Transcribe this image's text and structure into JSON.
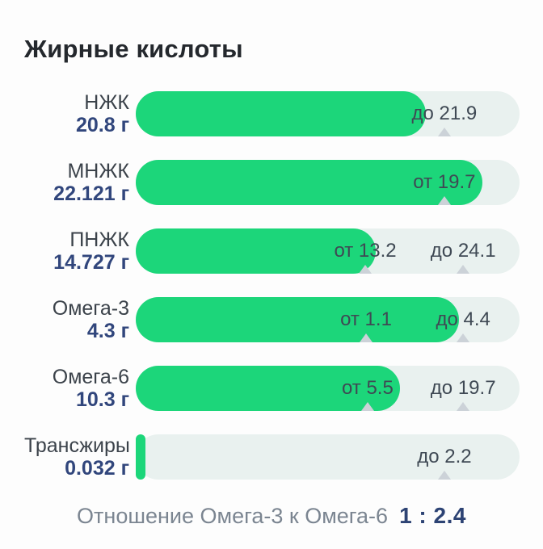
{
  "page": {
    "title": "Жирные кислоты"
  },
  "colors": {
    "bar_fill": "#1cd67a",
    "bar_track": "#e9f1ef",
    "value_text": "#31467c",
    "title_text": "#24282d",
    "threshold_marker": "#ccd2d8",
    "footer_label": "#7b8591",
    "footer_value": "#2d4374"
  },
  "chart_data": {
    "type": "bar",
    "orientation": "horizontal",
    "title": "Жирные кислоты",
    "unit": "г",
    "legend_position": "none",
    "grid": false,
    "rows": [
      {
        "name": "НЖК",
        "value": 20.8,
        "value_label": "20.8 г",
        "fill_percent": 75.6,
        "thresholds": [
          {
            "label": "до 21.9",
            "limit": 21.9,
            "kind": "max",
            "percent": 80.4
          }
        ]
      },
      {
        "name": "МНЖК",
        "value": 22.121,
        "value_label": "22.121 г",
        "fill_percent": 90.3,
        "thresholds": [
          {
            "label": "от 19.7",
            "limit": 19.7,
            "kind": "min",
            "percent": 80.4
          }
        ]
      },
      {
        "name": "ПНЖК",
        "value": 14.727,
        "value_label": "14.727 г",
        "fill_percent": 62.5,
        "thresholds": [
          {
            "label": "от 13.2",
            "limit": 13.2,
            "kind": "min",
            "percent": 59.8
          },
          {
            "label": "до 24.1",
            "limit": 24.1,
            "kind": "max",
            "percent": 85.3
          }
        ]
      },
      {
        "name": "Омега-3",
        "value": 4.3,
        "value_label": "4.3 г",
        "fill_percent": 84.2,
        "thresholds": [
          {
            "label": "от 1.1",
            "limit": 1.1,
            "kind": "min",
            "percent": 60.0
          },
          {
            "label": "до 4.4",
            "limit": 4.4,
            "kind": "max",
            "percent": 85.3
          }
        ]
      },
      {
        "name": "Омега-6",
        "value": 10.3,
        "value_label": "10.3 г",
        "fill_percent": 68.8,
        "thresholds": [
          {
            "label": "от 5.5",
            "limit": 5.5,
            "kind": "min",
            "percent": 60.4
          },
          {
            "label": "до 19.7",
            "limit": 19.7,
            "kind": "max",
            "percent": 85.3
          }
        ]
      },
      {
        "name": "Трансжиры",
        "value": 0.032,
        "value_label": "0.032 г",
        "fill_percent": 2.6,
        "thresholds": [
          {
            "label": "до 2.2",
            "limit": 2.2,
            "kind": "max",
            "percent": 80.4
          }
        ]
      }
    ],
    "ratio": {
      "label": "Отношение Омега-3 к Омега-6",
      "value": "1 : 2.4"
    }
  }
}
